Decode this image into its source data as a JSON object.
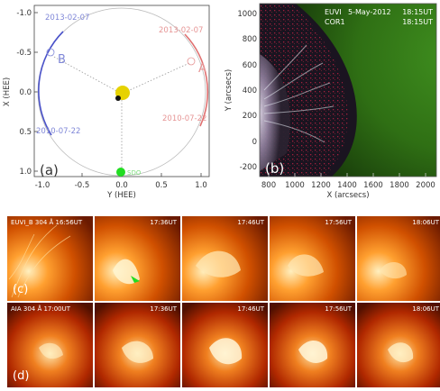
{
  "panel_a": {
    "label": "(a)",
    "xlabel": "Y (HEE)",
    "ylabel": "X (HEE)",
    "xticks": [
      "-1.0",
      "-0.5",
      "0.0",
      "0.5",
      "1.0"
    ],
    "yticks": [
      "-1.0",
      "-0.5",
      "0.0",
      "0.5",
      "1.0"
    ],
    "spacecraft_b": {
      "name": "B",
      "date_start": "2013-02-07",
      "date_end": "2010-07-22",
      "color": "#4a52c9"
    },
    "spacecraft_a": {
      "name": "A",
      "date_start": "2013-02-07",
      "date_end": "2010-07-22",
      "color": "#e07070"
    },
    "sdo_label": "SDO",
    "colors": {
      "sun": "#e6d200",
      "earth": "#111111",
      "sdo": "#22dd22",
      "orbit": "#bbbbbb"
    }
  },
  "panel_b": {
    "label": "(b)",
    "title_left_1": "EUVI",
    "title_left_2": "COR1",
    "title_mid": "5-May-2012",
    "time_1": "18:15UT",
    "time_2": "18:15UT",
    "xlabel": "X (arcsecs)",
    "ylabel": "Y (arcsecs)",
    "xticks": [
      "800",
      "1000",
      "1200",
      "1400",
      "1600",
      "1800",
      "2000"
    ],
    "yticks": [
      "1000",
      "800",
      "600",
      "400",
      "200",
      "0",
      "-200"
    ]
  },
  "panel_c": {
    "label": "(c)",
    "tiles": [
      {
        "label": "EUVI_B 304 Å 16:56UT"
      },
      {
        "label": "17:36UT"
      },
      {
        "label": "17:46UT"
      },
      {
        "label": "17:56UT"
      },
      {
        "label": "18:06UT"
      }
    ]
  },
  "panel_d": {
    "label": "(d)",
    "tiles": [
      {
        "label": "AIA 304 Å 17:00UT"
      },
      {
        "label": "17:36UT"
      },
      {
        "label": "17:46UT"
      },
      {
        "label": "17:56UT"
      },
      {
        "label": "18:06UT"
      }
    ]
  }
}
